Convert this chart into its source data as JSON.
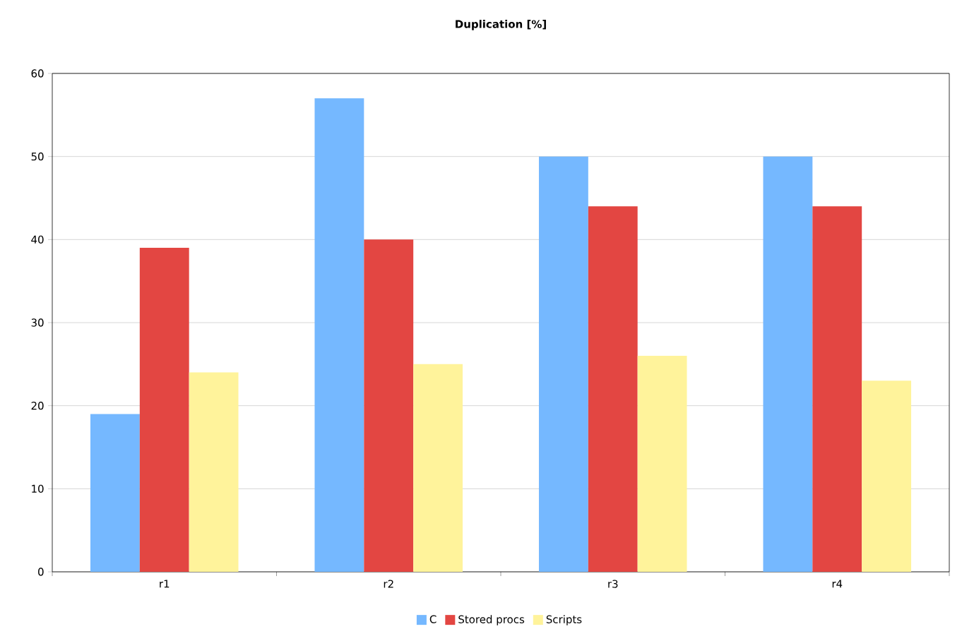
{
  "chart_data": {
    "type": "bar",
    "title": "Duplication [%]",
    "categories": [
      "r1",
      "r2",
      "r3",
      "r4"
    ],
    "series": [
      {
        "name": "C",
        "color": "#75b8ff",
        "values": [
          19,
          57,
          50,
          50
        ]
      },
      {
        "name": "Stored procs",
        "color": "#e34642",
        "values": [
          39,
          40,
          44,
          44
        ]
      },
      {
        "name": "Scripts",
        "color": "#fff39b",
        "values": [
          24,
          25,
          26,
          23
        ]
      }
    ],
    "ylim": [
      0,
      60
    ],
    "yticks": [
      0,
      10,
      20,
      30,
      40,
      50,
      60
    ],
    "grid": "y",
    "legend": "bottom"
  }
}
